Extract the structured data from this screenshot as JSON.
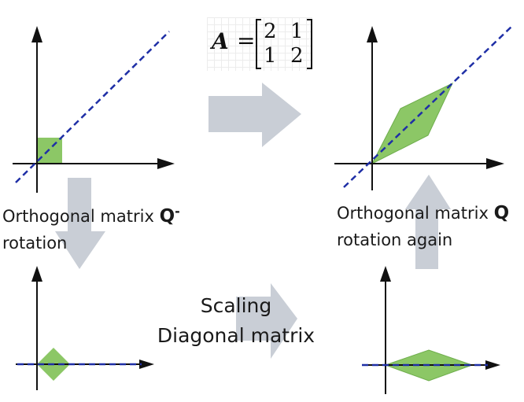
{
  "matrix": {
    "symbol": "A",
    "equals": "=",
    "rows": [
      [
        "2",
        "1"
      ],
      [
        "1",
        "2"
      ]
    ]
  },
  "captions": {
    "left_line1_text": "Orthogonal matrix ",
    "left_line1_bold": "Q",
    "left_line1_sup": "-",
    "left_line2": "rotation",
    "right_line1_text": "Orthogonal matrix ",
    "right_line1_bold": "Q",
    "right_line2": "rotation again",
    "center_line1": "Scaling",
    "center_line2": "Diagonal matrix"
  },
  "colors": {
    "shape_fill": "#8cc766",
    "shape_edge": "#6fae4d",
    "axis": "#111111",
    "dashed_line": "#1f2fa6",
    "arrow": "#c9ced6"
  }
}
